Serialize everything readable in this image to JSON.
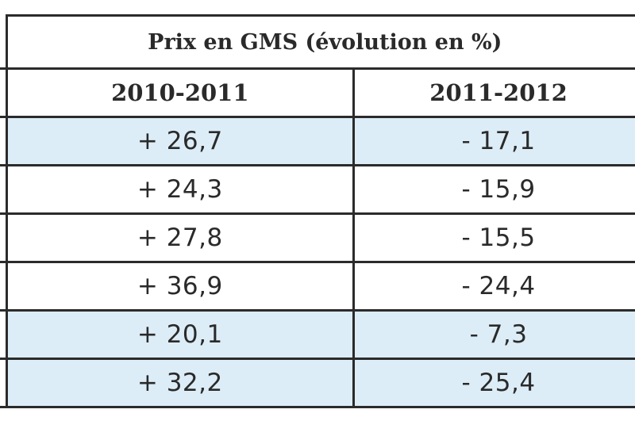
{
  "table": {
    "title": "Prix en GMS (évolution en %)",
    "columns": [
      "2010-2011",
      "2011-2012"
    ],
    "rows": [
      {
        "c1": "+ 26,7",
        "c2": "- 17,1",
        "shaded": true
      },
      {
        "c1": "+ 24,3",
        "c2": "- 15,9",
        "shaded": false
      },
      {
        "c1": "+ 27,8",
        "c2": "- 15,5",
        "shaded": false
      },
      {
        "c1": "+ 36,9",
        "c2": "- 24,4",
        "shaded": false
      },
      {
        "c1": "+ 20,1",
        "c2": "- 7,3",
        "shaded": true
      },
      {
        "c1": "+ 32,2",
        "c2": "- 25,4",
        "shaded": true
      }
    ],
    "colors": {
      "shaded_row": "#dcedf7",
      "border": "#2b2b2b"
    }
  }
}
